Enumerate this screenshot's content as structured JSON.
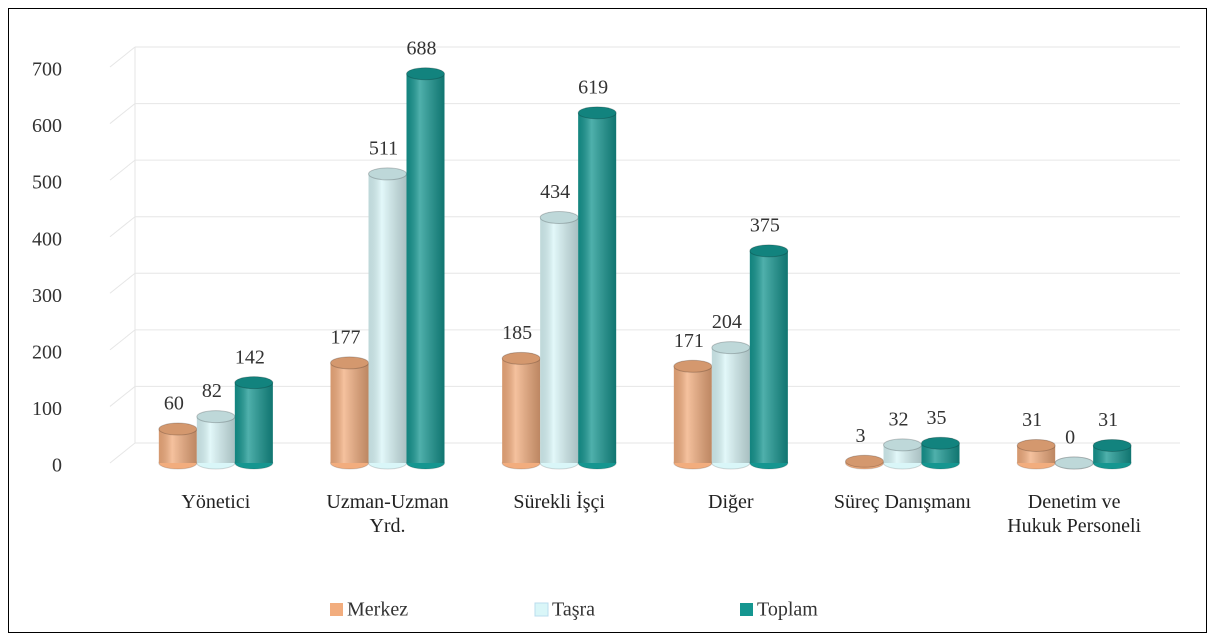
{
  "chart_data": {
    "type": "bar3d",
    "categories": [
      "Yönetici",
      "Uzman-Uzman Yrd.",
      "Sürekli İşçi",
      "Diğer",
      "Süreç Danışmanı",
      "Denetim ve Hukuk Personeli"
    ],
    "series": [
      {
        "name": "Merkez",
        "color": "#f2ad7e",
        "values": [
          60,
          177,
          185,
          171,
          3,
          31
        ]
      },
      {
        "name": "Taşra",
        "color": "#d9f6f8",
        "values": [
          82,
          511,
          434,
          204,
          32,
          0
        ]
      },
      {
        "name": "Toplam",
        "color": "#159690",
        "values": [
          142,
          688,
          619,
          375,
          35,
          31
        ]
      }
    ],
    "ylim": [
      0,
      700
    ],
    "yticks": [
      0,
      100,
      200,
      300,
      400,
      500,
      600,
      700
    ],
    "grid": true
  }
}
